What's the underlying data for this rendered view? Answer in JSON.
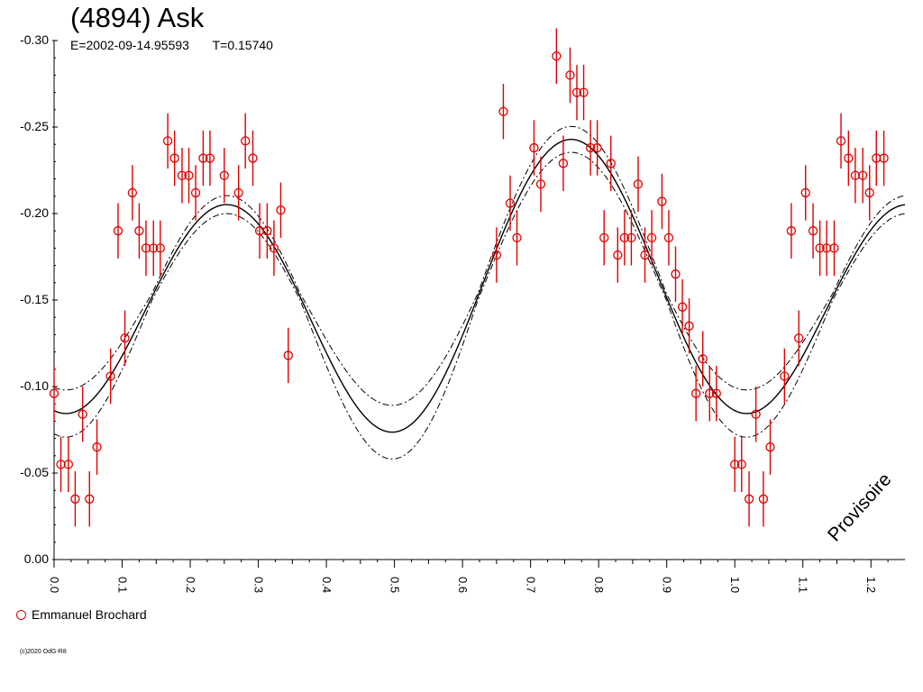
{
  "chart_data": {
    "type": "scatter",
    "title": "(4894) Ask",
    "subtitle": {
      "epoch": "E=2002-09-14.95593",
      "period": "T=0.15740"
    },
    "xlabel": "",
    "ylabel": "",
    "xlim": [
      0.0,
      1.25
    ],
    "ylim": [
      0.0,
      -0.3
    ],
    "x_ticks": [
      "0.0",
      "0.1",
      "0.2",
      "0.3",
      "0.4",
      "0.5",
      "0.6",
      "0.7",
      "0.8",
      "0.9",
      "1.0",
      "1.1",
      "1.2"
    ],
    "y_ticks": [
      "-0.30",
      "-0.25",
      "-0.20",
      "-0.15",
      "-0.10",
      "-0.05",
      "0.00"
    ],
    "grid": false,
    "legend_position": "bottom-left",
    "series": [
      {
        "name": "Emmanuel Brochard",
        "color": "#e00000",
        "marker": "open-circle",
        "error": 0.016,
        "points": [
          [
            0.0,
            -0.096
          ],
          [
            0.01,
            -0.055
          ],
          [
            0.021,
            -0.055
          ],
          [
            0.031,
            -0.035
          ],
          [
            0.042,
            -0.084
          ],
          [
            0.052,
            -0.035
          ],
          [
            0.063,
            -0.065
          ],
          [
            0.083,
            -0.106
          ],
          [
            0.094,
            -0.19
          ],
          [
            0.104,
            -0.128
          ],
          [
            0.115,
            -0.212
          ],
          [
            0.125,
            -0.19
          ],
          [
            0.135,
            -0.18
          ],
          [
            0.146,
            -0.18
          ],
          [
            0.156,
            -0.18
          ],
          [
            0.167,
            -0.242
          ],
          [
            0.177,
            -0.232
          ],
          [
            0.188,
            -0.222
          ],
          [
            0.198,
            -0.222
          ],
          [
            0.208,
            -0.212
          ],
          [
            0.219,
            -0.232
          ],
          [
            0.229,
            -0.232
          ],
          [
            0.25,
            -0.222
          ],
          [
            0.271,
            -0.212
          ],
          [
            0.281,
            -0.242
          ],
          [
            0.292,
            -0.232
          ],
          [
            0.302,
            -0.19
          ],
          [
            0.313,
            -0.19
          ],
          [
            0.323,
            -0.18
          ],
          [
            0.333,
            -0.202
          ],
          [
            0.344,
            -0.118
          ],
          [
            0.65,
            -0.176
          ],
          [
            0.66,
            -0.259
          ],
          [
            0.67,
            -0.206
          ],
          [
            0.68,
            -0.186
          ],
          [
            0.705,
            -0.238
          ],
          [
            0.715,
            -0.217
          ],
          [
            0.738,
            -0.291
          ],
          [
            0.748,
            -0.229
          ],
          [
            0.758,
            -0.28
          ],
          [
            0.768,
            -0.27
          ],
          [
            0.778,
            -0.27
          ],
          [
            0.788,
            -0.238
          ],
          [
            0.798,
            -0.238
          ],
          [
            0.808,
            -0.186
          ],
          [
            0.818,
            -0.229
          ],
          [
            0.828,
            -0.176
          ],
          [
            0.838,
            -0.186
          ],
          [
            0.848,
            -0.186
          ],
          [
            0.858,
            -0.217
          ],
          [
            0.868,
            -0.176
          ],
          [
            0.878,
            -0.186
          ],
          [
            0.893,
            -0.207
          ],
          [
            0.903,
            -0.186
          ],
          [
            0.913,
            -0.165
          ],
          [
            0.923,
            -0.146
          ],
          [
            0.933,
            -0.135
          ],
          [
            0.943,
            -0.096
          ],
          [
            0.953,
            -0.116
          ],
          [
            0.963,
            -0.096
          ],
          [
            0.973,
            -0.096
          ],
          [
            1.0,
            -0.055
          ],
          [
            1.01,
            -0.055
          ],
          [
            1.021,
            -0.035
          ],
          [
            1.031,
            -0.084
          ],
          [
            1.042,
            -0.035
          ],
          [
            1.052,
            -0.065
          ],
          [
            1.073,
            -0.106
          ],
          [
            1.083,
            -0.19
          ],
          [
            1.094,
            -0.128
          ],
          [
            1.104,
            -0.212
          ],
          [
            1.115,
            -0.19
          ],
          [
            1.125,
            -0.18
          ],
          [
            1.135,
            -0.18
          ],
          [
            1.146,
            -0.18
          ],
          [
            1.156,
            -0.242
          ],
          [
            1.167,
            -0.232
          ],
          [
            1.177,
            -0.222
          ],
          [
            1.188,
            -0.222
          ],
          [
            1.198,
            -0.212
          ],
          [
            1.208,
            -0.232
          ],
          [
            1.219,
            -0.232
          ]
        ]
      }
    ],
    "fit_model": {
      "style": [
        "solid",
        "dash-dot"
      ],
      "mean": -0.1518,
      "harmonics": [
        {
          "order": 1,
          "a": -0.0062,
          "b": 0.0186
        },
        {
          "order": 2,
          "a": 0.0719,
          "b": 0.0062
        }
      ],
      "envelope": 0.013
    },
    "watermark": "Provisoire",
    "copyright": "(c)2020 OdG-R8"
  }
}
